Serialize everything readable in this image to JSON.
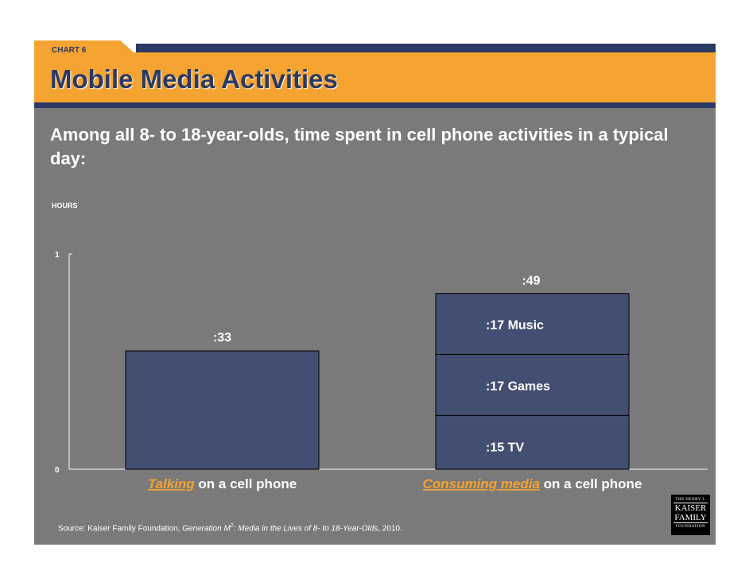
{
  "header": {
    "chart_tag": "CHART 6",
    "title": "Mobile Media Activities",
    "subtitle": "Among all 8- to 18-year-olds, time spent in cell phone activities in a typical day:"
  },
  "chart_data": {
    "type": "bar",
    "stacked": true,
    "ylabel": "HOURS",
    "ylim": [
      0,
      1
    ],
    "yticks": [
      "0",
      "1"
    ],
    "categories": [
      {
        "label_em": "Talking",
        "label_rest": " on a cell phone",
        "total_minutes": 33,
        "total_label": ":33",
        "segments": [
          {
            "name": "",
            "minutes": 33,
            "label": ""
          }
        ]
      },
      {
        "label_em": "Consuming media",
        "label_rest": " on a cell phone",
        "total_minutes": 49,
        "total_label": ":49",
        "segments": [
          {
            "name": "TV",
            "minutes": 15,
            "label": ":15  TV"
          },
          {
            "name": "Games",
            "minutes": 17,
            "label": ":17  Games"
          },
          {
            "name": "Music",
            "minutes": 17,
            "label": ":17  Music"
          }
        ]
      }
    ],
    "colors": {
      "bar": "#434f72",
      "bar_stroke": "#000000",
      "emphasis": "#f5a331",
      "text": "#ffffff"
    }
  },
  "footer": {
    "source_prefix": "Source: Kaiser Family Foundation, ",
    "source_title_a": "Generation M",
    "source_sup": "2",
    "source_title_b": ": Media in the Lives of 8- to 18-Year-Olds",
    "source_suffix": ", 2010."
  },
  "logo": {
    "line1": "THE HENRY J.",
    "line2a": "KAISER",
    "line2b": "FAMILY",
    "line3": "FOUNDATION"
  }
}
